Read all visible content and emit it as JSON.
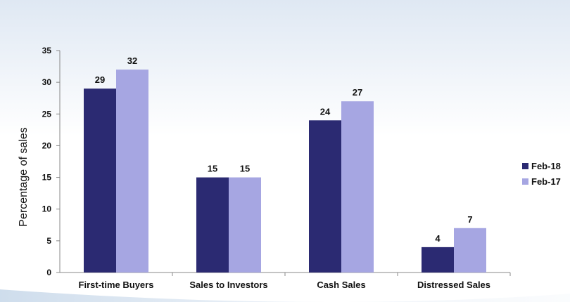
{
  "chart_data": {
    "type": "bar",
    "categories": [
      "First-time Buyers",
      "Sales to Investors",
      "Cash Sales",
      "Distressed Sales"
    ],
    "series": [
      {
        "name": "Feb-18",
        "values": [
          29,
          15,
          24,
          4
        ],
        "color": "#2b2a72"
      },
      {
        "name": "Feb-17",
        "values": [
          32,
          15,
          27,
          7
        ],
        "color": "#a6a6e2"
      }
    ],
    "ylabel": "Percentage of sales",
    "xlabel": "",
    "ylim": [
      0,
      35
    ],
    "yticks": [
      "0",
      "5",
      "10",
      "15",
      "20",
      "25",
      "30",
      "35"
    ],
    "grid": false,
    "legend_position": "right"
  }
}
